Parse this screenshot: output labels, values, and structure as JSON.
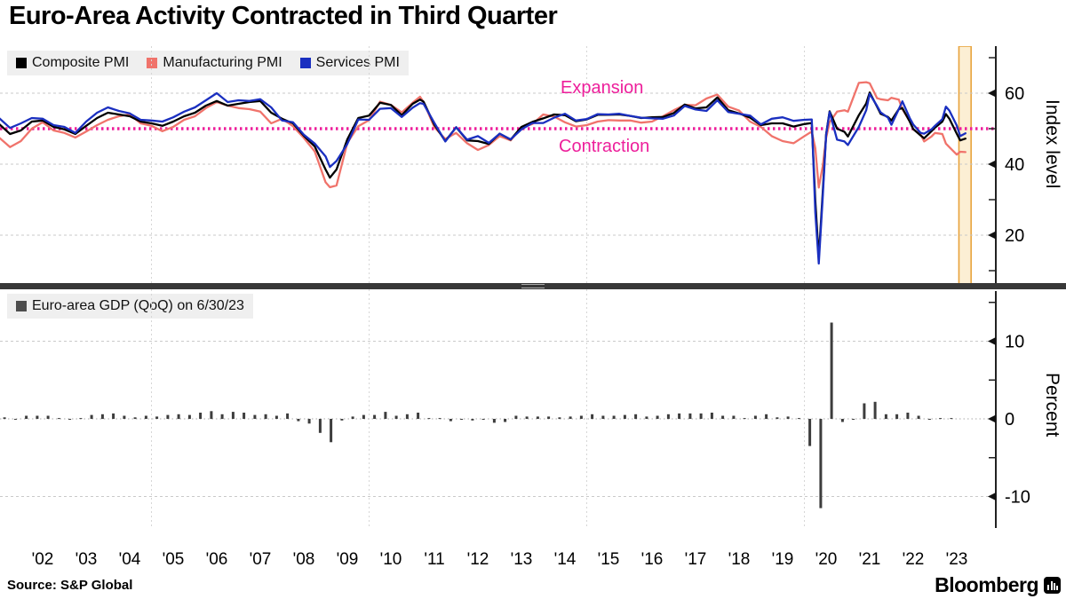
{
  "title": "Euro-Area Activity Contracted in Third Quarter",
  "source": "Source: S&P Global",
  "brand": {
    "name": "Bloomberg",
    "icon": "bloomberg-bars-icon"
  },
  "annotations": {
    "expansion": "Expansion",
    "contraction": "Contraction"
  },
  "colors": {
    "composite": "#000000",
    "manufacturing": "#f0736b",
    "services": "#1a2fc0",
    "threshold_pink": "#ed1f9b",
    "band_fill": "#fcefd4",
    "band_border": "#e8a33c",
    "gdp_bars": "#3d3d3d",
    "grid": "#c9c9c9",
    "legend_bg": "#efefef",
    "separator": "#383838"
  },
  "x_axis": {
    "labels": [
      "'02",
      "'03",
      "'04",
      "'05",
      "'06",
      "'07",
      "'08",
      "'09",
      "'10",
      "'11",
      "'12",
      "'13",
      "'14",
      "'15",
      "'16",
      "'17",
      "'18",
      "'19",
      "'20",
      "'21",
      "'22",
      "'23"
    ],
    "label_years": [
      2002.5,
      2003.5,
      2004.5,
      2005.5,
      2006.5,
      2007.5,
      2008.5,
      2009.5,
      2010.5,
      2011.5,
      2012.5,
      2013.5,
      2014.5,
      2015.5,
      2016.5,
      2017.5,
      2018.5,
      2019.5,
      2020.5,
      2021.5,
      2022.5,
      2023.5
    ],
    "gridline_years": [
      2005,
      2010,
      2015,
      2020
    ]
  },
  "chart_data": [
    {
      "type": "line",
      "panel": "top",
      "ylabel": "Index level",
      "yticks": [
        20,
        40,
        60
      ],
      "minor_yticks": [
        10,
        30,
        50,
        70
      ],
      "ylim": [
        5.75,
        73.25
      ],
      "xlim": [
        2001.45,
        2023.95
      ],
      "grid": true,
      "legend_position": "top-left",
      "threshold": {
        "value": 50,
        "label_above": "Expansion",
        "label_below": "Contraction"
      },
      "highlight_band": {
        "from": 2023.55,
        "to": 2023.83,
        "meaning": "third quarter 2023"
      },
      "x": [
        2001.5,
        2001.75,
        2002.0,
        2002.25,
        2002.5,
        2002.75,
        2003.0,
        2003.25,
        2003.5,
        2003.75,
        2004.0,
        2004.25,
        2004.5,
        2004.75,
        2005.0,
        2005.25,
        2005.5,
        2005.75,
        2006.0,
        2006.25,
        2006.5,
        2006.75,
        2007.0,
        2007.25,
        2007.5,
        2007.75,
        2008.0,
        2008.25,
        2008.5,
        2008.75,
        2009.0,
        2009.1,
        2009.25,
        2009.5,
        2009.75,
        2010.0,
        2010.25,
        2010.5,
        2010.75,
        2011.0,
        2011.17,
        2011.25,
        2011.5,
        2011.75,
        2012.0,
        2012.25,
        2012.5,
        2012.75,
        2013.0,
        2013.25,
        2013.5,
        2013.75,
        2014.0,
        2014.25,
        2014.5,
        2014.75,
        2015.0,
        2015.25,
        2015.5,
        2015.75,
        2016.0,
        2016.25,
        2016.5,
        2016.75,
        2017.0,
        2017.25,
        2017.5,
        2017.75,
        2018.0,
        2018.25,
        2018.5,
        2018.75,
        2019.0,
        2019.25,
        2019.5,
        2019.75,
        2020.0,
        2020.17,
        2020.25,
        2020.33,
        2020.42,
        2020.5,
        2020.58,
        2020.75,
        2020.92,
        2021.0,
        2021.25,
        2021.42,
        2021.5,
        2021.67,
        2021.75,
        2021.92,
        2022.0,
        2022.17,
        2022.25,
        2022.42,
        2022.5,
        2022.67,
        2022.75,
        2022.92,
        2023.0,
        2023.17,
        2023.25,
        2023.33,
        2023.5,
        2023.58,
        2023.7
      ],
      "series": [
        {
          "name": "Composite PMI",
          "color": "#000000",
          "y": [
            51.3,
            48.5,
            49.5,
            52.0,
            52.3,
            50.5,
            49.8,
            48.5,
            50.8,
            53.0,
            54.5,
            54.0,
            53.5,
            52.0,
            51.5,
            50.8,
            52.0,
            53.5,
            54.5,
            56.5,
            57.8,
            56.5,
            57.0,
            57.5,
            57.8,
            54.5,
            52.8,
            51.5,
            48.0,
            45.0,
            38.5,
            36.2,
            38.5,
            47.0,
            53.0,
            53.7,
            57.3,
            56.7,
            53.8,
            57.0,
            58.2,
            57.6,
            51.1,
            46.5,
            50.4,
            46.7,
            46.5,
            45.7,
            48.6,
            46.9,
            50.5,
            51.9,
            52.9,
            54.0,
            53.8,
            52.1,
            52.6,
            53.9,
            53.9,
            54.0,
            53.6,
            53.0,
            53.2,
            53.3,
            54.4,
            56.8,
            55.7,
            56.0,
            58.8,
            55.2,
            54.3,
            53.1,
            51.0,
            51.5,
            51.5,
            50.6,
            51.3,
            51.6,
            29.7,
            13.6,
            31.9,
            48.5,
            54.9,
            50.0,
            49.1,
            47.8,
            53.8,
            57.1,
            60.2,
            56.2,
            54.2,
            53.3,
            52.3,
            55.5,
            55.8,
            52.0,
            49.9,
            48.1,
            47.3,
            49.3,
            50.3,
            52.0,
            54.1,
            52.8,
            48.6,
            46.7,
            47.2
          ]
        },
        {
          "name": "Manufacturing PMI",
          "color": "#f0736b",
          "y": [
            47.5,
            44.8,
            46.5,
            50.0,
            51.8,
            49.5,
            48.8,
            47.5,
            49.2,
            51.0,
            52.5,
            53.5,
            54.0,
            51.5,
            50.8,
            49.3,
            50.5,
            52.5,
            53.5,
            55.8,
            57.5,
            56.5,
            55.8,
            55.5,
            54.8,
            51.5,
            52.8,
            50.7,
            47.4,
            43.6,
            34.9,
            33.5,
            34.0,
            46.0,
            50.7,
            52.4,
            57.6,
            56.7,
            54.6,
            57.3,
            59.0,
            57.5,
            50.4,
            47.1,
            48.8,
            45.9,
            44.0,
            45.4,
            47.9,
            46.7,
            50.3,
            51.3,
            54.0,
            53.4,
            51.8,
            50.6,
            51.0,
            52.0,
            52.4,
            52.3,
            52.3,
            51.7,
            52.0,
            53.5,
            55.2,
            56.7,
            56.6,
            58.5,
            59.6,
            56.2,
            55.1,
            52.0,
            50.5,
            47.9,
            46.5,
            45.9,
            47.9,
            49.2,
            44.5,
            33.4,
            39.4,
            47.4,
            51.8,
            54.8,
            55.2,
            54.8,
            62.9,
            63.1,
            62.8,
            58.6,
            58.3,
            58.0,
            58.7,
            58.2,
            55.5,
            52.1,
            49.8,
            48.4,
            46.4,
            47.8,
            48.8,
            48.5,
            45.8,
            44.8,
            42.7,
            43.5,
            43.4
          ]
        },
        {
          "name": "Services PMI",
          "color": "#1a2fc0",
          "y": [
            53.0,
            50.2,
            51.5,
            53.0,
            52.8,
            51.0,
            50.5,
            48.8,
            52.0,
            54.5,
            56.0,
            55.0,
            54.3,
            52.5,
            52.3,
            52.0,
            53.2,
            54.8,
            56.0,
            58.0,
            60.0,
            57.5,
            58.0,
            57.8,
            58.3,
            56.0,
            52.3,
            51.8,
            48.3,
            45.8,
            42.2,
            39.2,
            40.9,
            45.7,
            52.6,
            52.5,
            55.6,
            55.8,
            53.3,
            55.9,
            57.2,
            57.0,
            51.6,
            46.4,
            50.4,
            46.9,
            47.9,
            46.0,
            48.6,
            47.0,
            49.8,
            51.6,
            51.6,
            53.1,
            54.2,
            52.3,
            52.7,
            54.1,
            54.0,
            54.2,
            53.6,
            53.1,
            52.9,
            52.8,
            53.7,
            56.4,
            55.4,
            55.0,
            58.0,
            54.7,
            54.2,
            53.7,
            51.2,
            52.8,
            53.2,
            52.2,
            52.5,
            52.6,
            26.4,
            12.0,
            30.5,
            48.3,
            54.7,
            46.9,
            46.4,
            45.4,
            50.5,
            55.2,
            59.8,
            56.4,
            54.6,
            53.1,
            51.1,
            55.5,
            57.7,
            53.0,
            51.2,
            48.8,
            48.6,
            49.8,
            50.8,
            52.7,
            56.2,
            55.1,
            50.9,
            47.9,
            48.7
          ]
        }
      ]
    },
    {
      "type": "bar",
      "panel": "bottom",
      "legend": "Euro-area GDP (QoQ) on 6/30/23",
      "legend_swatch_color": "#4d4d4d",
      "ylabel": "Percent",
      "yticks": [
        -10,
        0,
        10
      ],
      "minor_yticks": [
        -5,
        5,
        15
      ],
      "ylim": [
        -13.5,
        16.7
      ],
      "grid": true,
      "start_quarter": "2001Q3",
      "start_year_decimal": 2001.625,
      "step_years": 0.25,
      "values": [
        0.2,
        0.0,
        0.4,
        0.4,
        0.4,
        0.1,
        -0.1,
        0.1,
        0.5,
        0.6,
        0.7,
        0.4,
        0.2,
        0.4,
        0.3,
        0.5,
        0.6,
        0.5,
        0.8,
        1.0,
        0.6,
        0.9,
        0.8,
        0.5,
        0.6,
        0.4,
        0.7,
        -0.3,
        -0.6,
        -1.8,
        -3.0,
        -0.2,
        0.3,
        0.5,
        0.5,
        0.9,
        0.4,
        0.6,
        0.8,
        0.1,
        0.1,
        -0.3,
        -0.1,
        -0.2,
        -0.1,
        -0.5,
        -0.4,
        0.4,
        0.3,
        0.3,
        0.3,
        0.2,
        0.3,
        0.4,
        0.6,
        0.4,
        0.4,
        0.5,
        0.6,
        0.3,
        0.4,
        0.6,
        0.7,
        0.7,
        0.7,
        0.8,
        0.4,
        0.4,
        0.1,
        0.4,
        0.6,
        0.2,
        0.3,
        0.1,
        -3.5,
        -11.5,
        12.4,
        -0.4,
        -0.1,
        2.0,
        2.2,
        0.6,
        0.6,
        0.8,
        0.4,
        0.0,
        0.1,
        0.1
      ]
    }
  ]
}
